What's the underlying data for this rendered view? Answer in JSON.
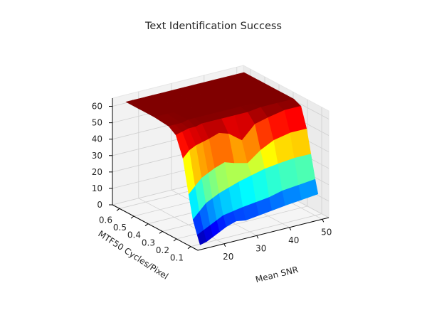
{
  "chart_data": {
    "type": "surface3d",
    "title": "Text Identification Success",
    "xlabel": "Mean SNR",
    "ylabel": "MTF50 Cycles/Pixel",
    "zlabel": "",
    "colormap": "jet",
    "xticks": [
      "20",
      "30",
      "40",
      "50"
    ],
    "yticks": [
      "0.1",
      "0.2",
      "0.3",
      "0.4",
      "0.5",
      "0.6"
    ],
    "zticks": [
      "0",
      "10",
      "20",
      "30",
      "40",
      "50",
      "60"
    ],
    "xlim": [
      12,
      52
    ],
    "ylim": [
      0.05,
      0.65
    ],
    "zlim": [
      0,
      65
    ],
    "grid": true,
    "x": [
      14,
      16,
      18,
      20,
      22,
      25,
      28,
      32,
      36,
      40,
      45,
      50
    ],
    "y": [
      0.08,
      0.1,
      0.13,
      0.16,
      0.2,
      0.25,
      0.3,
      0.4,
      0.5,
      0.6
    ],
    "z": [
      [
        1,
        2,
        4,
        6,
        8,
        10,
        9,
        10,
        11,
        12,
        13,
        14
      ],
      [
        6,
        8,
        10,
        12,
        14,
        15,
        16,
        17,
        18,
        20,
        21,
        22
      ],
      [
        14,
        18,
        22,
        24,
        26,
        28,
        30,
        32,
        34,
        35,
        36,
        36
      ],
      [
        28,
        32,
        36,
        38,
        40,
        42,
        40,
        38,
        44,
        48,
        50,
        50
      ],
      [
        48,
        52,
        54,
        55,
        56,
        58,
        56,
        50,
        58,
        60,
        62,
        62
      ],
      [
        60,
        61,
        62,
        62,
        63,
        63,
        63,
        63,
        63,
        64,
        64,
        64
      ],
      [
        63,
        63,
        63,
        64,
        64,
        64,
        64,
        64,
        64,
        64,
        64,
        64
      ],
      [
        64,
        64,
        64,
        64,
        64,
        64,
        64,
        64,
        64,
        64,
        64,
        64
      ],
      [
        64,
        64,
        64,
        64,
        64,
        64,
        64,
        64,
        64,
        64,
        64,
        64
      ],
      [
        64,
        64,
        64,
        64,
        64,
        64,
        64,
        64,
        64,
        64,
        64,
        64
      ]
    ]
  }
}
